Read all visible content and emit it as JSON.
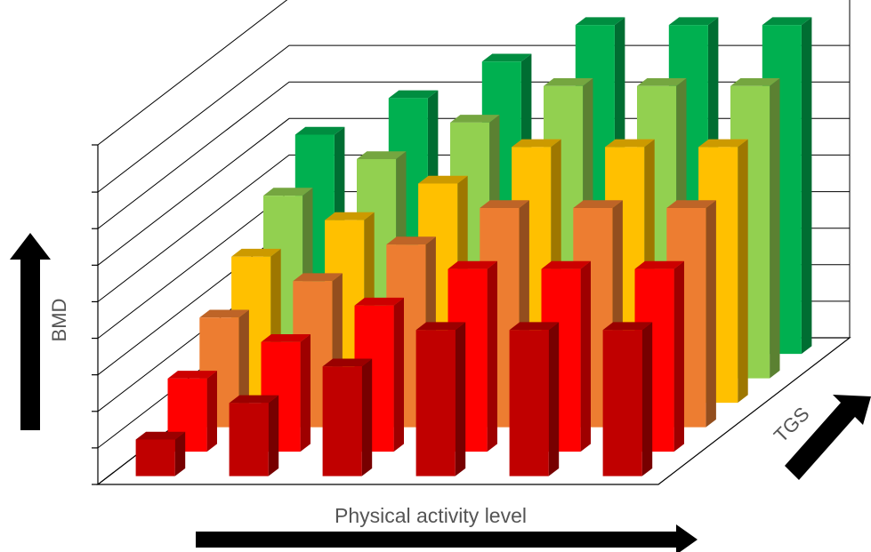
{
  "chart_data": {
    "type": "bar",
    "subtype": "3d-column",
    "categories": [
      "",
      "",
      "",
      "",
      "",
      ""
    ],
    "series": [
      {
        "values": [
          1,
          2,
          3,
          4,
          4,
          4
        ],
        "color": "#c00000"
      },
      {
        "values": [
          2,
          3,
          4,
          5,
          5,
          5
        ],
        "color": "#ff0000"
      },
      {
        "values": [
          3,
          4,
          5,
          6,
          6,
          6
        ],
        "color": "#ed7d31"
      },
      {
        "values": [
          4,
          5,
          6,
          7,
          7,
          7
        ],
        "color": "#ffc000"
      },
      {
        "values": [
          5,
          6,
          7,
          8,
          8,
          8
        ],
        "color": "#92d050"
      },
      {
        "values": [
          6,
          7,
          8,
          9,
          9,
          9
        ],
        "color": "#00b050"
      }
    ],
    "xlabel": "Physical activity level",
    "ylabel": "BMD",
    "zlabel": "TGS",
    "ylim": [
      0,
      9
    ],
    "grid": true,
    "legend": "none"
  }
}
